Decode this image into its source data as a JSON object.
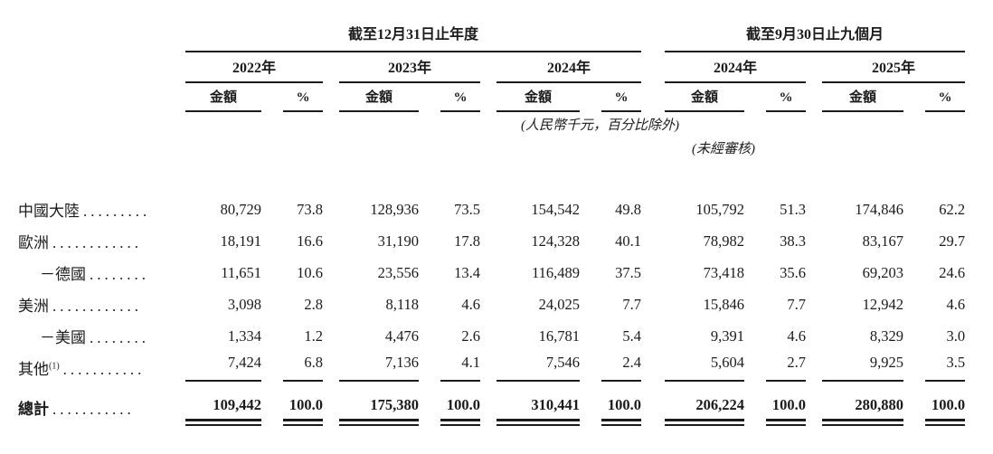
{
  "colors": {
    "text": "#1b1b1b",
    "rule": "#1b1b1b",
    "background": "#ffffff"
  },
  "table": {
    "group_headers": [
      {
        "label": "截至12月31日止年度"
      },
      {
        "label": "截至9月30日止九個月"
      }
    ],
    "year_headers": [
      "2022年",
      "2023年",
      "2024年",
      "2024年",
      "2025年"
    ],
    "sub_headers": {
      "amount": "金額",
      "percent": "%"
    },
    "notes": {
      "currency": "(人民幣千元，百分比除外)",
      "unaudited": "(未經審核)"
    },
    "rows": [
      {
        "label": "中國大陸",
        "sup": "",
        "dots": ".........",
        "indent": false,
        "rule_below": false,
        "values": [
          "80,729",
          "73.8",
          "128,936",
          "73.5",
          "154,542",
          "49.8",
          "105,792",
          "51.3",
          "174,846",
          "62.2"
        ]
      },
      {
        "label": "歐洲",
        "sup": "",
        "dots": "............",
        "indent": false,
        "rule_below": false,
        "values": [
          "18,191",
          "16.6",
          "31,190",
          "17.8",
          "124,328",
          "40.1",
          "78,982",
          "38.3",
          "83,167",
          "29.7"
        ]
      },
      {
        "label": "－德國",
        "sup": "",
        "dots": "........",
        "indent": true,
        "rule_below": false,
        "values": [
          "11,651",
          "10.6",
          "23,556",
          "13.4",
          "116,489",
          "37.5",
          "73,418",
          "35.6",
          "69,203",
          "24.6"
        ]
      },
      {
        "label": "美洲",
        "sup": "",
        "dots": "............",
        "indent": false,
        "rule_below": false,
        "values": [
          "3,098",
          "2.8",
          "8,118",
          "4.6",
          "24,025",
          "7.7",
          "15,846",
          "7.7",
          "12,942",
          "4.6"
        ]
      },
      {
        "label": "－美國",
        "sup": "",
        "dots": "........",
        "indent": true,
        "rule_below": false,
        "values": [
          "1,334",
          "1.2",
          "4,476",
          "2.6",
          "16,781",
          "5.4",
          "9,391",
          "4.6",
          "8,329",
          "3.0"
        ]
      },
      {
        "label": "其他",
        "sup": "(1)",
        "dots": "...........",
        "indent": false,
        "rule_below": true,
        "values": [
          "7,424",
          "6.8",
          "7,136",
          "4.1",
          "7,546",
          "2.4",
          "5,604",
          "2.7",
          "9,925",
          "3.5"
        ]
      }
    ],
    "total_row": {
      "label": "總計",
      "sup": "",
      "dots": "...........",
      "values": [
        "109,442",
        "100.0",
        "175,380",
        "100.0",
        "310,441",
        "100.0",
        "206,224",
        "100.0",
        "280,880",
        "100.0"
      ]
    }
  }
}
